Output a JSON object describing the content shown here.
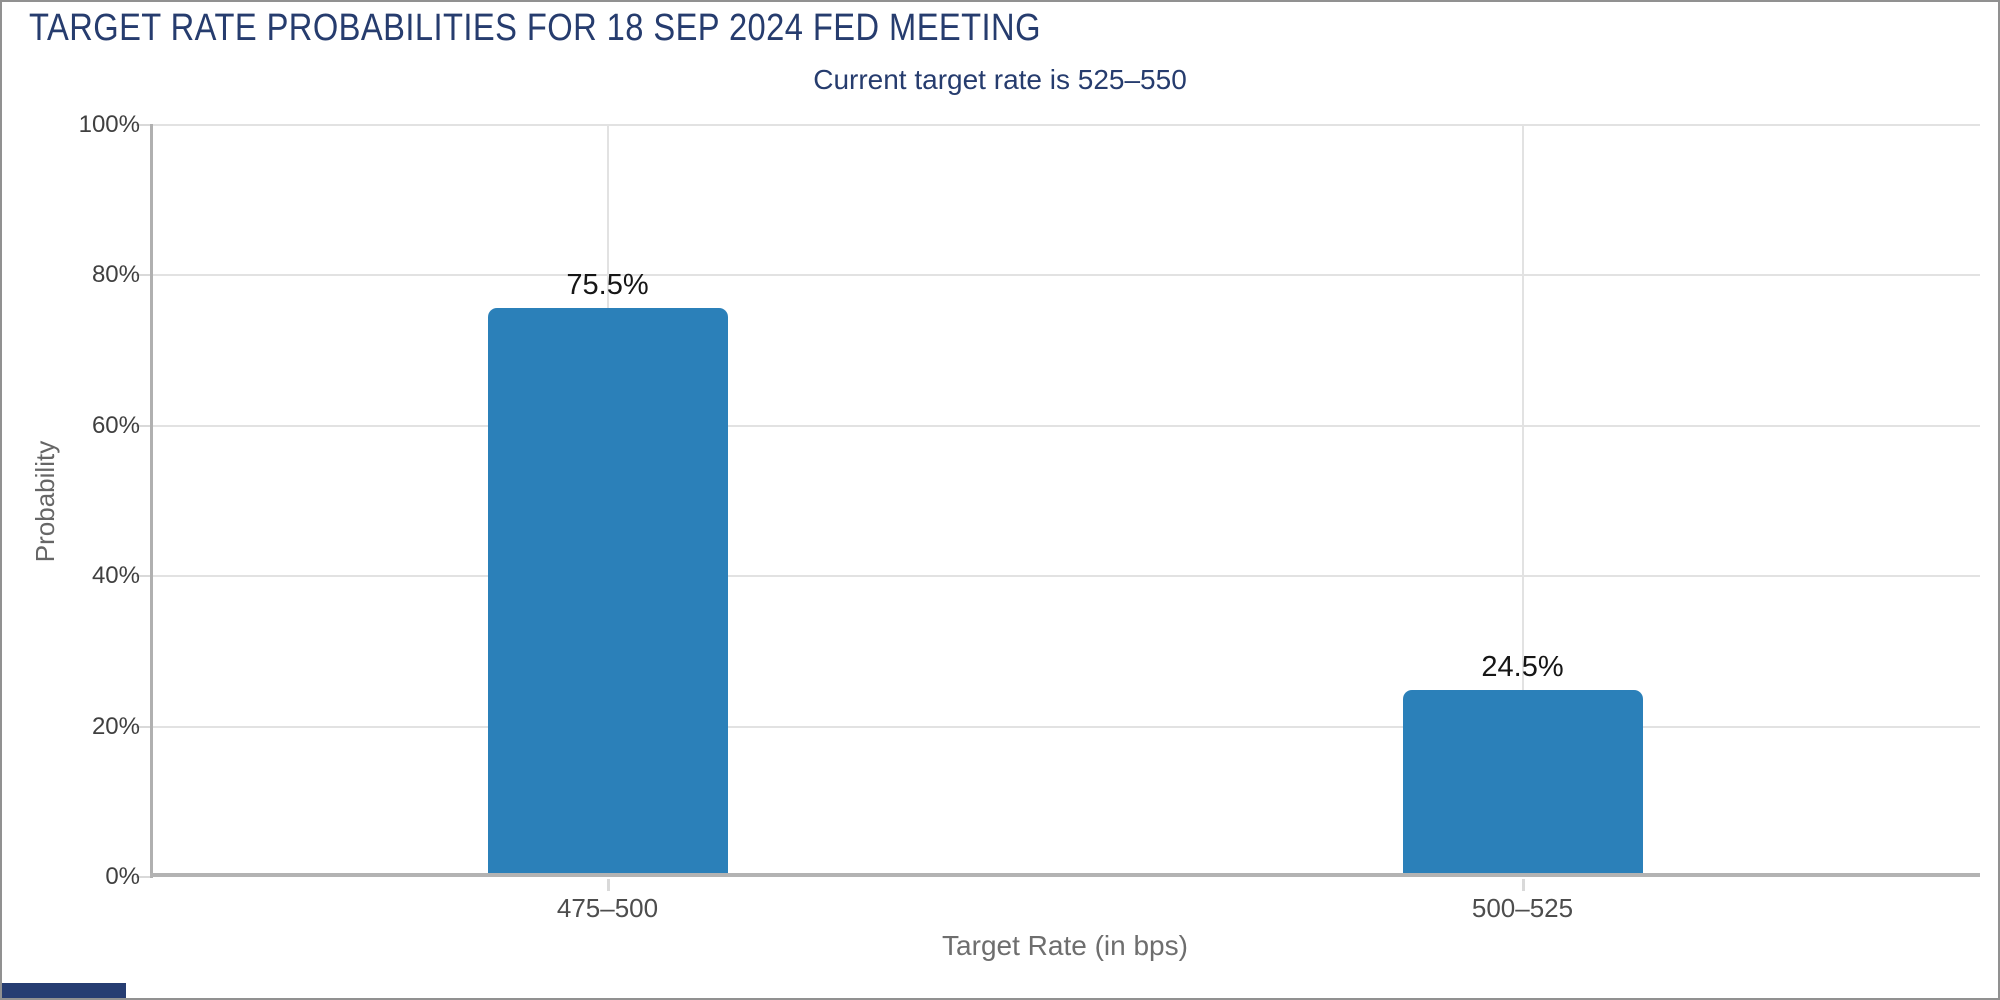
{
  "header": {
    "title": "TARGET RATE PROBABILITIES FOR 18 SEP 2024 FED MEETING",
    "title_color": "#263c6e",
    "subtitle": "Current target rate is 525–550",
    "subtitle_color": "#263c6e"
  },
  "chart_data": {
    "type": "bar",
    "title": "TARGET RATE PROBABILITIES FOR 18 SEP 2024 FED MEETING",
    "subtitle": "Current target rate is 525–550",
    "categories": [
      "475–500",
      "500–525"
    ],
    "values": [
      75.5,
      24.5
    ],
    "value_labels": [
      "75.5%",
      "24.5%"
    ],
    "xlabel": "Target Rate (in bps)",
    "ylabel": "Probability",
    "ylim": [
      0,
      100
    ],
    "yticks": [
      "0%",
      "20%",
      "40%",
      "60%",
      "80%",
      "100%"
    ],
    "grid": true,
    "legend": "none",
    "bar_color": "#2b80b9",
    "gridline_color": "#e2e2e2",
    "axis_line_color": "#b3b3b3",
    "tick_label_color": "#404040",
    "category_label_color": "#4d4d4d",
    "axis_title_color": "#6e6e6e",
    "value_label_color": "#161616"
  },
  "footer": {
    "corner_accent_color": "#263d72"
  }
}
